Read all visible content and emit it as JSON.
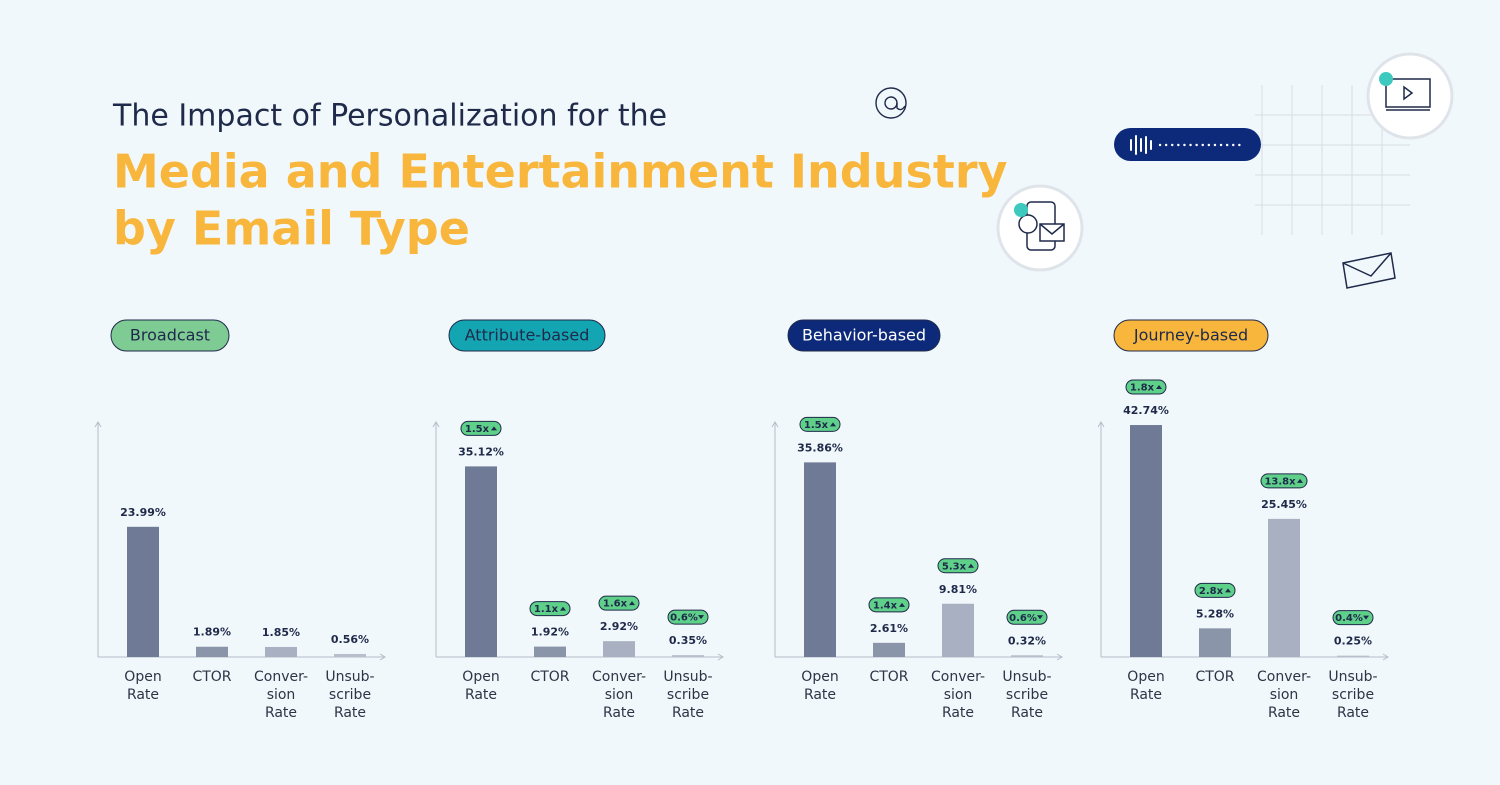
{
  "header": {
    "title": "The Impact of Personalization for the",
    "subtitle_lines": [
      "Media and Entertainment Industry",
      "by Email Type"
    ]
  },
  "chart_data": [
    {
      "type": "bar",
      "title": "Broadcast",
      "pill_color": "#7ecb94",
      "pill_text_color": "#1f2a4a",
      "categories": [
        [
          "Open",
          "Rate"
        ],
        [
          "CTOR"
        ],
        [
          "Conver-",
          "sion",
          "Rate"
        ],
        [
          "Unsub-",
          "scribe",
          "Rate"
        ]
      ],
      "values": [
        23.99,
        1.89,
        1.85,
        0.56
      ],
      "value_labels": [
        "23.99%",
        "1.89%",
        "1.85%",
        "0.56%"
      ],
      "colors": [
        "#6e7a96",
        "#8b95aa",
        "#a9b0c2",
        "#b8bfcc"
      ],
      "ylim": [
        0,
        43.3
      ]
    },
    {
      "type": "bar",
      "title": "Attribute-based",
      "pill_color": "#14a5b3",
      "pill_text_color": "#1f2a4a",
      "categories": [
        [
          "Open",
          "Rate"
        ],
        [
          "CTOR"
        ],
        [
          "Conver-",
          "sion",
          "Rate"
        ],
        [
          "Unsub-",
          "scribe",
          "Rate"
        ]
      ],
      "values": [
        35.12,
        1.92,
        2.92,
        0.35
      ],
      "value_labels": [
        "35.12%",
        "1.92%",
        "2.92%",
        "0.35%"
      ],
      "badges": [
        "1.5x",
        "1.1x",
        "1.6x",
        "0.6%"
      ],
      "badge_directions": [
        "up",
        "up",
        "up",
        "down"
      ],
      "colors": [
        "#6e7a96",
        "#8b95aa",
        "#a9b0c2",
        "#b8bfcc"
      ],
      "ylim": [
        0,
        43.3
      ]
    },
    {
      "type": "bar",
      "title": "Behavior-based",
      "pill_color": "#0d2a7a",
      "pill_text_color": "#ffffff",
      "categories": [
        [
          "Open",
          "Rate"
        ],
        [
          "CTOR"
        ],
        [
          "Conver-",
          "sion",
          "Rate"
        ],
        [
          "Unsub-",
          "scribe",
          "Rate"
        ]
      ],
      "values": [
        35.86,
        2.61,
        9.81,
        0.32
      ],
      "value_labels": [
        "35.86%",
        "2.61%",
        "9.81%",
        "0.32%"
      ],
      "badges": [
        "1.5x",
        "1.4x",
        "5.3x",
        "0.6%"
      ],
      "badge_directions": [
        "up",
        "up",
        "up",
        "down"
      ],
      "colors": [
        "#6e7a96",
        "#8b95aa",
        "#a9b0c2",
        "#b8bfcc"
      ],
      "ylim": [
        0,
        43.3
      ]
    },
    {
      "type": "bar",
      "title": "Journey-based",
      "pill_color": "#f8b73c",
      "pill_text_color": "#1f2a4a",
      "categories": [
        [
          "Open",
          "Rate"
        ],
        [
          "CTOR"
        ],
        [
          "Conver-",
          "sion",
          "Rate"
        ],
        [
          "Unsub-",
          "scribe",
          "Rate"
        ]
      ],
      "values": [
        42.74,
        5.28,
        25.45,
        0.25
      ],
      "value_labels": [
        "42.74%",
        "5.28%",
        "25.45%",
        "0.25%"
      ],
      "badges": [
        "1.8x",
        "2.8x",
        "13.8x",
        "0.4%"
      ],
      "badge_directions": [
        "up",
        "up",
        "up",
        "down"
      ],
      "colors": [
        "#6e7a96",
        "#8b95aa",
        "#a9b0c2",
        "#b8bfcc"
      ],
      "ylim": [
        0,
        43.3
      ]
    }
  ]
}
